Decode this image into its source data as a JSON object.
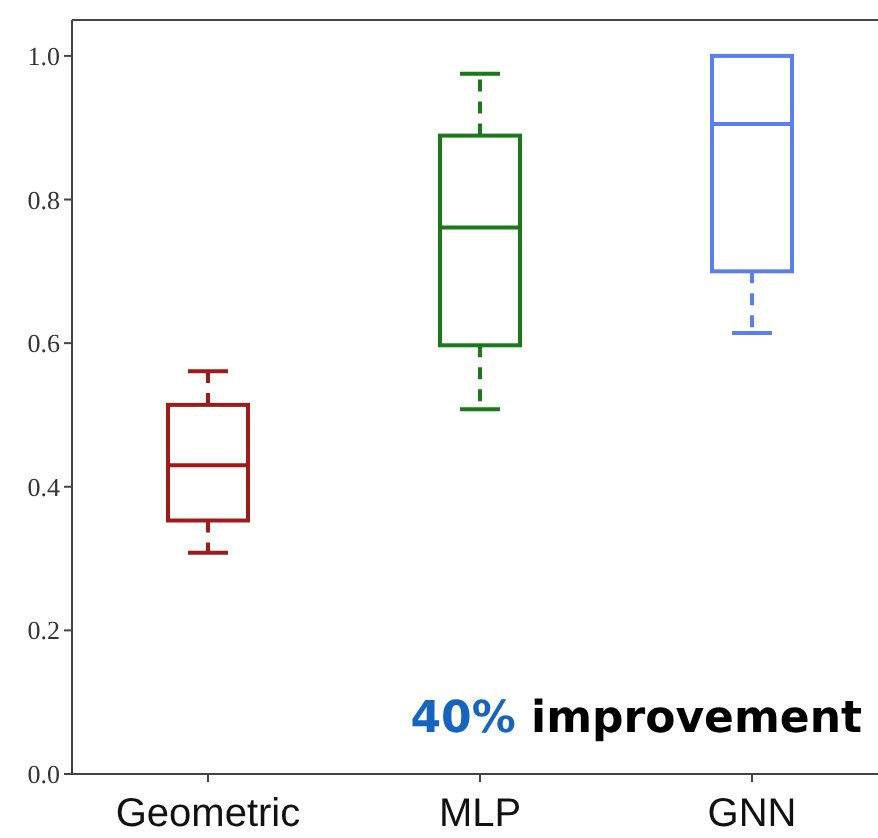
{
  "chart_data": {
    "type": "box",
    "categories": [
      "Geometric",
      "MLP",
      "GNN"
    ],
    "boxes": [
      {
        "low": 0.308,
        "q1": 0.353,
        "median": 0.43,
        "q3": 0.514,
        "high": 0.561
      },
      {
        "low": 0.508,
        "q1": 0.597,
        "median": 0.761,
        "q3": 0.889,
        "high": 0.975
      },
      {
        "low": 0.614,
        "q1": 0.7,
        "median": 0.905,
        "q3": 1.0,
        "high": 1.0
      }
    ],
    "colors": [
      "#a11a1a",
      "#1a7a1a",
      "#5a7ff0"
    ],
    "ylim": [
      0,
      1.05
    ],
    "yticks": [
      {
        "value": 0,
        "label": "0.0"
      },
      0.2,
      0.4,
      0.6,
      0.8,
      {
        "value": 1,
        "label": "1.0"
      }
    ],
    "line_style": "dashed",
    "grid": false,
    "annotations": [
      "40% improvement"
    ]
  }
}
